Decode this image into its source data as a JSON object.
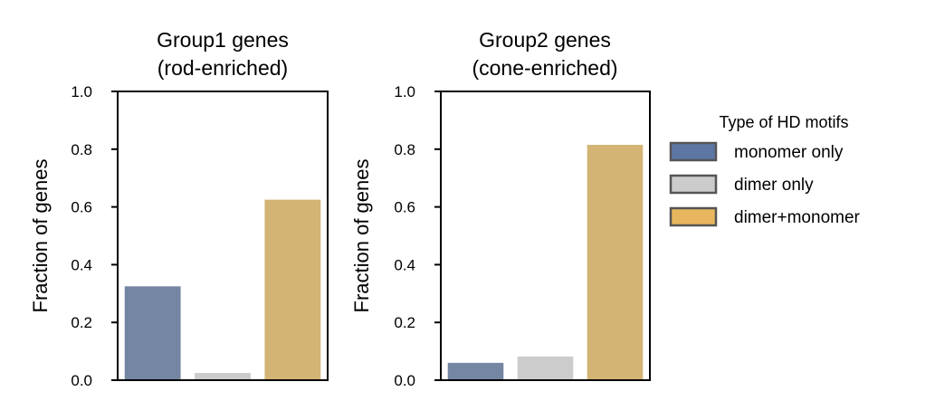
{
  "chart_data": [
    {
      "type": "bar",
      "title": [
        "Group1 genes",
        "(rod-enriched)"
      ],
      "xlabel": "",
      "ylabel": "Fraction of genes",
      "ylim": [
        0,
        1.0
      ],
      "yticks": [
        "0.0",
        "0.2",
        "0.4",
        "0.6",
        "0.8",
        "1.0"
      ],
      "categories": [
        "monomer only",
        "dimer only",
        "dimer+monomer"
      ],
      "values": [
        0.325,
        0.025,
        0.625
      ]
    },
    {
      "type": "bar",
      "title": [
        "Group2 genes",
        "(cone-enriched)"
      ],
      "xlabel": "",
      "ylabel": "Fraction of genes",
      "ylim": [
        0,
        1.0
      ],
      "yticks": [
        "0.0",
        "0.2",
        "0.4",
        "0.6",
        "0.8",
        "1.0"
      ],
      "categories": [
        "monomer only",
        "dimer only",
        "dimer+monomer"
      ],
      "values": [
        0.06,
        0.082,
        0.815
      ]
    }
  ],
  "legend": {
    "title": "Type of HD motifs",
    "placement": "right",
    "items": [
      {
        "label": "monomer only",
        "color": "#5d77a4"
      },
      {
        "label": "dimer only",
        "color": "#cccccc"
      },
      {
        "label": "dimer+monomer",
        "color": "#e8b65d"
      }
    ]
  },
  "bar_colors": [
    "#7586a3",
    "#cccccc",
    "#d3b474"
  ],
  "legend_edge_color": "#555555"
}
